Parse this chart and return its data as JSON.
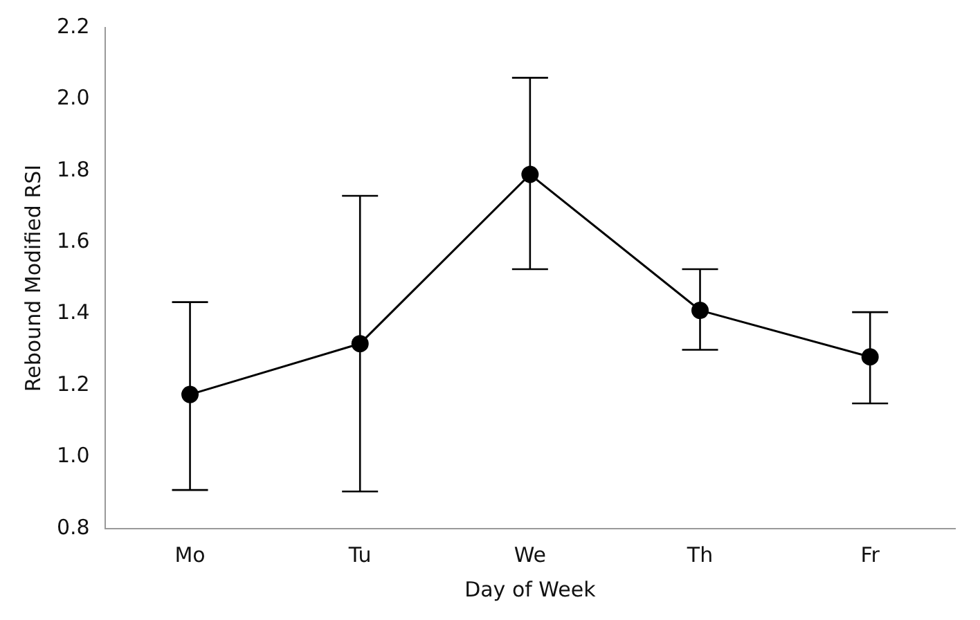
{
  "chart_data": {
    "type": "line",
    "xlabel": "Day of Week",
    "ylabel": "Rebound Modified RSI",
    "categories": [
      "Mo",
      "Tu",
      "We",
      "Th",
      "Fr"
    ],
    "series": [
      {
        "color": "#000000",
        "values": [
          1.175,
          1.317,
          1.79,
          1.41,
          1.28
        ],
        "errors": [
          [
            0.908,
            1.433
          ],
          [
            0.904,
            1.73
          ],
          [
            1.525,
            2.06
          ],
          [
            1.3,
            1.525
          ],
          [
            1.15,
            1.405
          ]
        ]
      }
    ],
    "ylim": [
      0.8,
      2.2
    ],
    "yticks": [
      0.8,
      {
        "value": 1,
        "label": "1.0"
      },
      1.2,
      1.4,
      1.6,
      1.8,
      {
        "value": 2,
        "label": "2.0"
      },
      2.2
    ],
    "marker": "circle",
    "line_style": "solid",
    "grid": false,
    "legend": false
  }
}
